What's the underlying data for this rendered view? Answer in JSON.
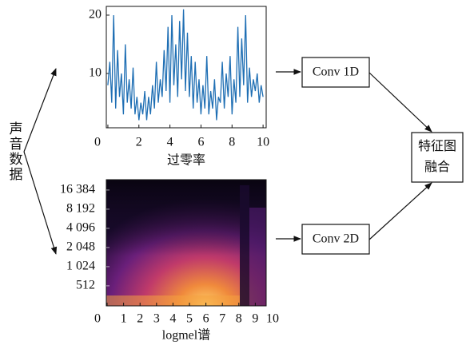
{
  "input": {
    "label": "声音数据"
  },
  "nodes": [
    {
      "label": "Conv 1D"
    },
    {
      "label": "Conv 2D"
    },
    {
      "label": "特征图融合"
    }
  ],
  "chart_data": [
    {
      "type": "line",
      "x_label": "过零率",
      "color": "#1f6fb4",
      "x": [
        0,
        0.125,
        0.25,
        0.375,
        0.5,
        0.625,
        0.75,
        0.875,
        1,
        1.125,
        1.25,
        1.375,
        1.5,
        1.625,
        1.75,
        1.875,
        2,
        2.125,
        2.25,
        2.375,
        2.5,
        2.625,
        2.75,
        2.875,
        3,
        3.125,
        3.25,
        3.375,
        3.5,
        3.625,
        3.75,
        3.875,
        4,
        4.125,
        4.25,
        4.375,
        4.5,
        4.625,
        4.75,
        4.875,
        5,
        5.125,
        5.25,
        5.375,
        5.5,
        5.625,
        5.75,
        5.875,
        6,
        6.125,
        6.25,
        6.375,
        6.5,
        6.625,
        6.75,
        6.875,
        7,
        7.125,
        7.25,
        7.375,
        7.5,
        7.625,
        7.75,
        7.875,
        8,
        8.125,
        8.25,
        8.375,
        8.5,
        8.625,
        8.75,
        8.875,
        9,
        9.125,
        9.25,
        9.375,
        9.5,
        9.625,
        9.75,
        9.875,
        10
      ],
      "series": [
        {
          "values": [
            8,
            12,
            5,
            20,
            4,
            14,
            6,
            10,
            3,
            15,
            5,
            9,
            4,
            11,
            3,
            6,
            2,
            5,
            3,
            7,
            2,
            6,
            3,
            8,
            4,
            12,
            5,
            9,
            6,
            14,
            7,
            18,
            5,
            20,
            8,
            15,
            6,
            19,
            9,
            21,
            7,
            17,
            6,
            13,
            4,
            12,
            5,
            9,
            3,
            8,
            4,
            13,
            3,
            7,
            4,
            9,
            2,
            6,
            5,
            12,
            4,
            10,
            6,
            13,
            3,
            9,
            5,
            18,
            6,
            16,
            8,
            20,
            5,
            11,
            6,
            9,
            7,
            10,
            5,
            8,
            6
          ]
        }
      ],
      "xlim": [
        -0.1,
        10.2
      ],
      "ylim": [
        0.7,
        21.5
      ],
      "xticks": [
        0,
        2,
        4,
        6,
        8,
        10
      ],
      "yticks": [
        10,
        20
      ]
    },
    {
      "type": "spectrogram",
      "x_label": "logmel谱",
      "yscale": "log",
      "xlim": [
        -0.05,
        9.66
      ],
      "ylim": [
        248,
        23800
      ],
      "xticks": [
        0,
        1,
        2,
        3,
        4,
        5,
        6,
        7,
        8,
        9,
        10
      ],
      "yticks": [
        {
          "value": 16384,
          "label": "16 384"
        },
        {
          "value": 8192,
          "label": "8 192"
        },
        {
          "value": 4096,
          "label": "4 096"
        },
        {
          "value": 2048,
          "label": "2 048"
        },
        {
          "value": 1024,
          "label": "1 024"
        },
        512
      ]
    }
  ]
}
